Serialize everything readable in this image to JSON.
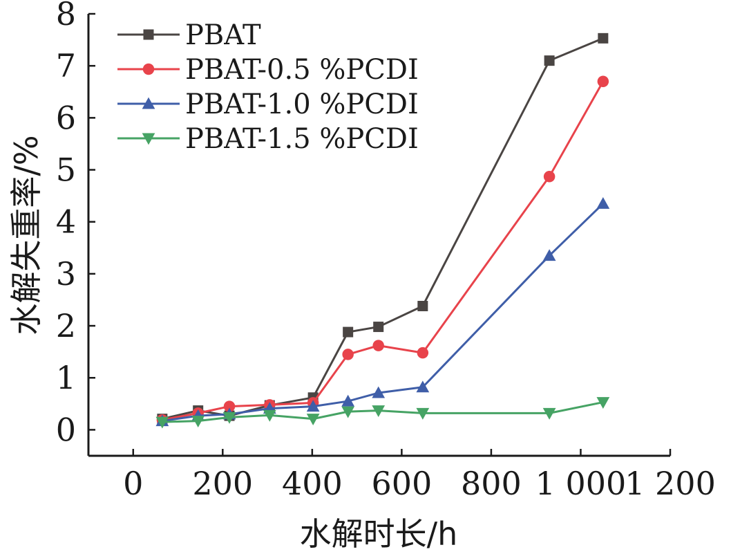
{
  "chart_data": {
    "type": "line",
    "xlabel": "水解时长/h",
    "ylabel": "水解失重率/%",
    "xlim": [
      -100,
      1200
    ],
    "ylim": [
      -0.5,
      8
    ],
    "xticks": [
      0,
      200,
      400,
      600,
      800,
      1000,
      1200
    ],
    "xtick_labels": [
      "0",
      "200",
      "400",
      "600",
      "800",
      "1 000",
      "1 200"
    ],
    "yticks": [
      0,
      1,
      2,
      3,
      4,
      5,
      6,
      7,
      8
    ],
    "ytick_labels": [
      "0",
      "1",
      "2",
      "3",
      "4",
      "5",
      "6",
      "7",
      "8"
    ],
    "grid": false,
    "legend_position": "top-left",
    "x": [
      65,
      145,
      215,
      305,
      402,
      480,
      548,
      647,
      930,
      1050
    ],
    "series": [
      {
        "name": "PBAT",
        "color": "#4a4543",
        "marker": "square",
        "values": [
          0.21,
          0.37,
          0.27,
          0.47,
          0.62,
          1.88,
          1.98,
          2.38,
          7.1,
          7.53
        ]
      },
      {
        "name": "PBAT-0.5 %PCDI",
        "color": "#e8434b",
        "marker": "circle",
        "values": [
          0.19,
          0.32,
          0.45,
          0.48,
          0.52,
          1.45,
          1.62,
          1.48,
          4.87,
          6.7
        ]
      },
      {
        "name": "PBAT-1.0 %PCDI",
        "color": "#3f5ea8",
        "marker": "triangle-up",
        "values": [
          0.17,
          0.27,
          0.3,
          0.41,
          0.45,
          0.55,
          0.71,
          0.82,
          3.35,
          4.35
        ]
      },
      {
        "name": "PBAT-1.5 %PCDI",
        "color": "#46a364",
        "marker": "triangle-down",
        "values": [
          0.15,
          0.17,
          0.24,
          0.28,
          0.21,
          0.35,
          0.37,
          0.32,
          0.32,
          0.53
        ]
      }
    ]
  }
}
